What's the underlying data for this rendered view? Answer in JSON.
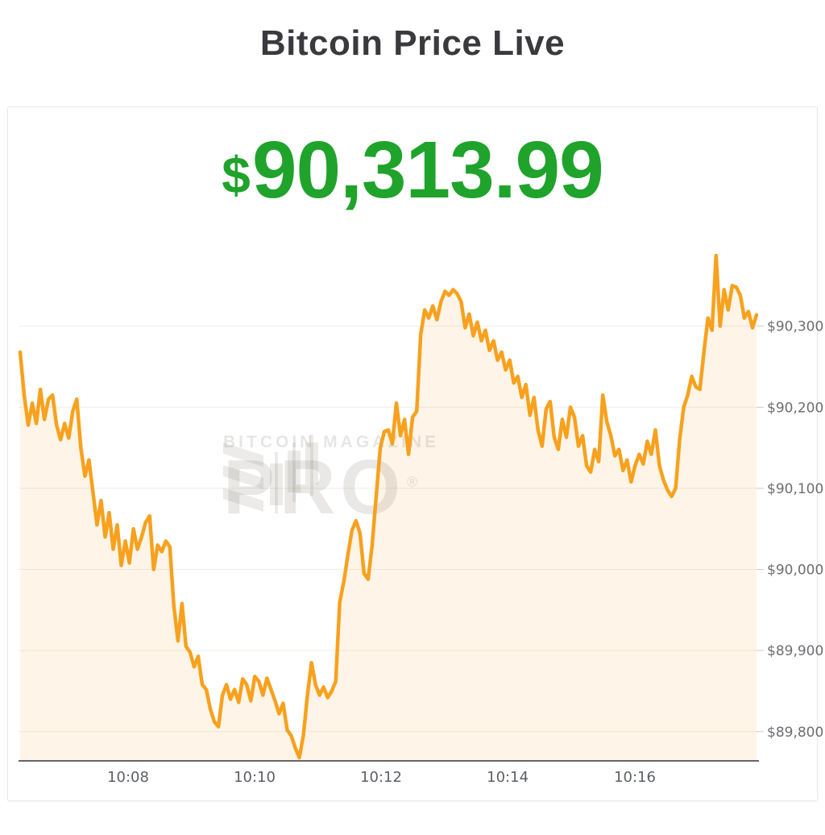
{
  "header": {
    "title": "Bitcoin Price Live"
  },
  "price": {
    "currency_symbol": "$",
    "value": "90,313.99",
    "color": "#1fa32b"
  },
  "watermark": {
    "brand_line": "BITCOIN MAGAZINE",
    "product": "PRO",
    "registered": "®",
    "icon": "bitcoin-magazine-pro-logo"
  },
  "chart_data": {
    "type": "area",
    "title": "Bitcoin Price Live",
    "xlabel": "",
    "ylabel": "",
    "unit": "USD",
    "grid": "horizontal",
    "legend": "none",
    "line_color": "#F8A11E",
    "fill_color": "rgba(248,161,30,0.10)",
    "axis_line_color": "#666666",
    "last_value": 90313.99,
    "ylim": [
      89764,
      90404
    ],
    "y_ticks": [
      {
        "label": "$90,300",
        "value": 90300
      },
      {
        "label": "$90,200",
        "value": 90200
      },
      {
        "label": "$90,100",
        "value": 90100
      },
      {
        "label": "$90,000",
        "value": 90000
      },
      {
        "label": "$89,900",
        "value": 89900
      },
      {
        "label": "$89,800",
        "value": 89800
      }
    ],
    "x_ticks": [
      {
        "label": "10:08",
        "f": 0.1466
      },
      {
        "label": "10:10",
        "f": 0.3184
      },
      {
        "label": "10:12",
        "f": 0.4902
      },
      {
        "label": "10:14",
        "f": 0.662
      },
      {
        "label": "10:16",
        "f": 0.8348
      }
    ],
    "values": [
      90268,
      90215,
      90178,
      90205,
      90180,
      90222,
      90185,
      90210,
      90215,
      90178,
      90160,
      90180,
      90162,
      90195,
      90210,
      90150,
      90115,
      90135,
      90095,
      90055,
      90085,
      90040,
      90070,
      90025,
      90055,
      90005,
      90035,
      90008,
      90050,
      90025,
      90040,
      90058,
      90066,
      90000,
      90030,
      90022,
      90035,
      90028,
      89955,
      89912,
      89958,
      89905,
      89898,
      89880,
      89893,
      89858,
      89852,
      89828,
      89812,
      89806,
      89845,
      89858,
      89840,
      89852,
      89836,
      89865,
      89858,
      89838,
      89868,
      89862,
      89845,
      89866,
      89852,
      89838,
      89822,
      89835,
      89802,
      89795,
      89780,
      89768,
      89795,
      89845,
      89885,
      89858,
      89845,
      89855,
      89842,
      89850,
      89862,
      89960,
      89985,
      90018,
      90048,
      90060,
      90045,
      89995,
      89988,
      90030,
      90090,
      90150,
      90170,
      90172,
      90155,
      90205,
      90165,
      90185,
      90142,
      90188,
      90195,
      90290,
      90320,
      90310,
      90325,
      90308,
      90330,
      90343,
      90338,
      90345,
      90340,
      90330,
      90298,
      90315,
      90288,
      90305,
      90282,
      90295,
      90270,
      90282,
      90258,
      90268,
      90246,
      90258,
      90230,
      90238,
      90212,
      90228,
      90190,
      90212,
      90172,
      90152,
      90198,
      90207,
      90163,
      90148,
      90185,
      90163,
      90200,
      90188,
      90152,
      90165,
      90128,
      90120,
      90148,
      90133,
      90215,
      90182,
      90165,
      90140,
      90148,
      90122,
      90135,
      90108,
      90128,
      90142,
      90130,
      90158,
      90142,
      90172,
      90128,
      90110,
      90098,
      90090,
      90100,
      90160,
      90200,
      90215,
      90238,
      90225,
      90222,
      90268,
      90310,
      90295,
      90387,
      90300,
      90345,
      90320,
      90350,
      90348,
      90338,
      90310,
      90318,
      90298,
      90314
    ]
  }
}
